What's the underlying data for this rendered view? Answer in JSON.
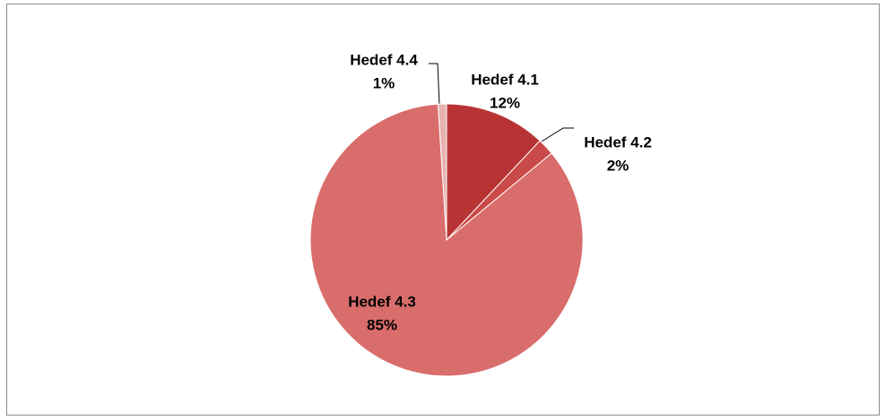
{
  "chart_data": {
    "type": "pie",
    "categories": [
      "Hedef 4.1",
      "Hedef 4.2",
      "Hedef 4.3",
      "Hedef 4.4"
    ],
    "values": [
      12,
      2,
      85,
      1
    ],
    "value_labels": [
      "12%",
      "2%",
      "85%",
      "1%"
    ],
    "colors": [
      "#b83434",
      "#c94a48",
      "#d96d6c",
      "#e6b3b1"
    ]
  }
}
